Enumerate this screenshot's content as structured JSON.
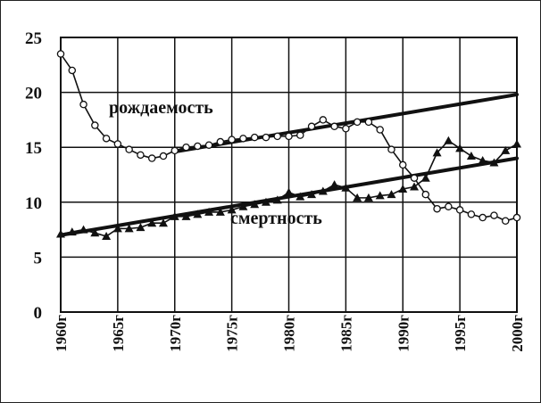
{
  "chart_data": {
    "type": "line",
    "title": "",
    "xlabel": "",
    "ylabel": "",
    "ylim": [
      0,
      25
    ],
    "xlim": [
      1960,
      2000
    ],
    "x_tick_labels": [
      "1960г",
      "1965г",
      "1970г",
      "1975г",
      "1980г",
      "1985г",
      "1990г",
      "1995г",
      "2000г"
    ],
    "x_tick_values": [
      1960,
      1965,
      1970,
      1975,
      1980,
      1985,
      1990,
      1995,
      2000
    ],
    "y_tick_values": [
      0,
      5,
      10,
      15,
      20,
      25
    ],
    "grid": true,
    "x": [
      1960,
      1961,
      1962,
      1963,
      1964,
      1965,
      1966,
      1967,
      1968,
      1969,
      1970,
      1971,
      1972,
      1973,
      1974,
      1975,
      1976,
      1977,
      1978,
      1979,
      1980,
      1981,
      1982,
      1983,
      1984,
      1985,
      1986,
      1987,
      1988,
      1989,
      1990,
      1991,
      1992,
      1993,
      1994,
      1995,
      1996,
      1997,
      1998,
      1999,
      2000
    ],
    "series": [
      {
        "name": "рождаемость",
        "marker": "circle",
        "values": [
          23.5,
          22.0,
          18.9,
          17.0,
          15.8,
          15.3,
          14.8,
          14.3,
          14.0,
          14.2,
          14.7,
          15.0,
          15.1,
          15.2,
          15.5,
          15.7,
          15.8,
          15.9,
          15.9,
          16.0,
          16.0,
          16.1,
          16.9,
          17.5,
          16.9,
          16.7,
          17.3,
          17.3,
          16.6,
          14.8,
          13.4,
          12.2,
          10.7,
          9.4,
          9.6,
          9.3,
          8.9,
          8.6,
          8.8,
          8.3,
          8.6
        ]
      },
      {
        "name": "смертность",
        "marker": "triangle",
        "values": [
          7.1,
          7.3,
          7.5,
          7.2,
          6.9,
          7.6,
          7.6,
          7.7,
          8.1,
          8.1,
          8.7,
          8.7,
          8.9,
          9.1,
          9.1,
          9.3,
          9.6,
          9.8,
          10.0,
          10.2,
          10.9,
          10.5,
          10.7,
          11.0,
          11.6,
          11.3,
          10.4,
          10.4,
          10.6,
          10.7,
          11.2,
          11.4,
          12.2,
          14.5,
          15.6,
          14.9,
          14.2,
          13.8,
          13.6,
          14.7,
          15.3
        ]
      }
    ],
    "trend_lines": [
      {
        "series": "рождаемость",
        "from": [
          1970,
          14.6
        ],
        "to": [
          2000,
          19.8
        ]
      },
      {
        "series": "смертность",
        "from": [
          1960,
          7.0
        ],
        "to": [
          2000,
          14.0
        ]
      }
    ],
    "annotations": [
      "рождаемость",
      "смертность"
    ]
  },
  "colors": {
    "series": "#111111",
    "grid": "#111111",
    "background": "#ffffff"
  }
}
